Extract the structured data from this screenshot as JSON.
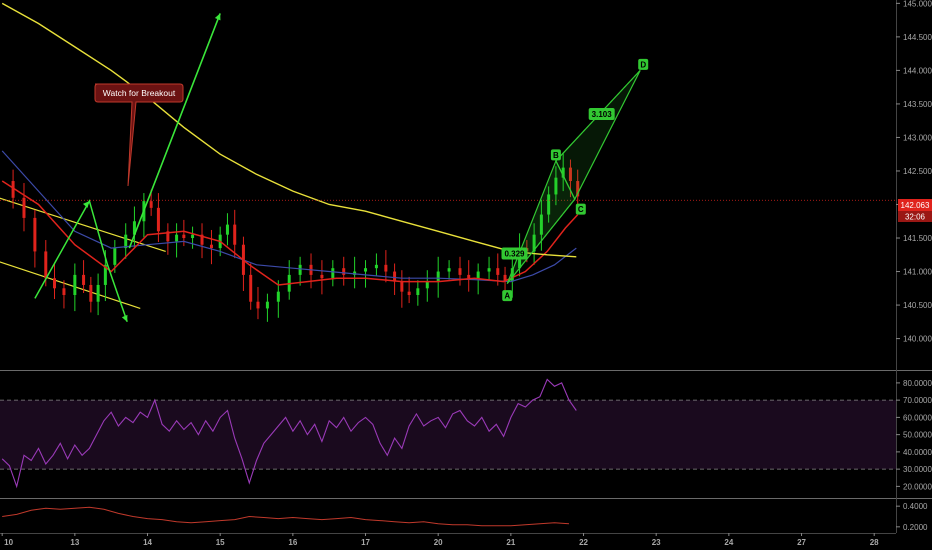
{
  "colors": {
    "background": "#000000",
    "bull_candle": "#22d42a",
    "bear_candle": "#e0231c",
    "sma_yellow": "#e8e03a",
    "ema_red": "#e0231c",
    "ema_blue": "#3c4aa8",
    "pattern_green": "#32c832",
    "arrow_green": "#3ae63a",
    "rsi_line": "#9a3ab8",
    "rsi_band": "#1a0a1e",
    "lower_line": "#c0392b",
    "price_line": "#e0231c",
    "callout_bg": "#6b1212"
  },
  "callout": {
    "text": "Watch for Breakout"
  },
  "price_tag": {
    "price": "142.063",
    "countdown": "32:06"
  },
  "chart_data": [
    {
      "type": "line",
      "panel": "price",
      "ytick_labels": [
        "145.000",
        "144.500",
        "144.000",
        "143.500",
        "143.000",
        "142.500",
        "142.000",
        "141.500",
        "141.000",
        "140.500",
        "140.000"
      ],
      "ylim": [
        139.8,
        145.05
      ],
      "xtick_labels": [
        "10",
        "13",
        "14",
        "15",
        "16",
        "17",
        "20",
        "21",
        "22",
        "23",
        "24",
        "27",
        "28"
      ],
      "x_positions": [
        0,
        1,
        2,
        3,
        4,
        5,
        6,
        7,
        8,
        9,
        10,
        11,
        12
      ],
      "xlim": [
        -0.03,
        12.3
      ],
      "close_series": [
        [
          0.0,
          142.35
        ],
        [
          0.15,
          142.1
        ],
        [
          0.3,
          141.8
        ],
        [
          0.45,
          141.3
        ],
        [
          0.6,
          140.9
        ],
        [
          0.72,
          140.75
        ],
        [
          0.85,
          140.65
        ],
        [
          1.0,
          140.95
        ],
        [
          1.12,
          140.8
        ],
        [
          1.22,
          140.55
        ],
        [
          1.32,
          140.8
        ],
        [
          1.42,
          141.1
        ],
        [
          1.55,
          141.35
        ],
        [
          1.7,
          141.55
        ],
        [
          1.82,
          141.75
        ],
        [
          1.95,
          142.05
        ],
        [
          2.05,
          141.95
        ],
        [
          2.15,
          141.6
        ],
        [
          2.28,
          141.45
        ],
        [
          2.4,
          141.55
        ],
        [
          2.5,
          141.5
        ],
        [
          2.62,
          141.55
        ],
        [
          2.75,
          141.4
        ],
        [
          2.88,
          141.35
        ],
        [
          3.0,
          141.55
        ],
        [
          3.1,
          141.7
        ],
        [
          3.2,
          141.4
        ],
        [
          3.32,
          140.95
        ],
        [
          3.42,
          140.55
        ],
        [
          3.52,
          140.45
        ],
        [
          3.65,
          140.55
        ],
        [
          3.8,
          140.7
        ],
        [
          3.95,
          140.95
        ],
        [
          4.1,
          141.1
        ],
        [
          4.25,
          140.95
        ],
        [
          4.4,
          140.9
        ],
        [
          4.55,
          141.05
        ],
        [
          4.7,
          140.95
        ],
        [
          4.85,
          141.0
        ],
        [
          5.0,
          141.05
        ],
        [
          5.15,
          141.1
        ],
        [
          5.28,
          141.0
        ],
        [
          5.4,
          140.85
        ],
        [
          5.5,
          140.7
        ],
        [
          5.6,
          140.65
        ],
        [
          5.72,
          140.75
        ],
        [
          5.85,
          140.85
        ],
        [
          6.0,
          141.0
        ],
        [
          6.15,
          141.05
        ],
        [
          6.3,
          140.95
        ],
        [
          6.42,
          140.9
        ],
        [
          6.55,
          141.0
        ],
        [
          6.7,
          141.05
        ],
        [
          6.82,
          140.95
        ],
        [
          6.92,
          140.85
        ],
        [
          7.02,
          141.05
        ],
        [
          7.12,
          141.35
        ],
        [
          7.22,
          141.3
        ],
        [
          7.32,
          141.55
        ],
        [
          7.42,
          141.85
        ],
        [
          7.52,
          142.15
        ],
        [
          7.62,
          142.4
        ],
        [
          7.72,
          142.55
        ],
        [
          7.82,
          142.35
        ],
        [
          7.92,
          142.12
        ]
      ],
      "sma200": [
        [
          0.0,
          145.0
        ],
        [
          0.5,
          144.7
        ],
        [
          1.0,
          144.35
        ],
        [
          1.5,
          144.0
        ],
        [
          2.0,
          143.6
        ],
        [
          2.5,
          143.15
        ],
        [
          3.0,
          142.75
        ],
        [
          3.5,
          142.45
        ],
        [
          4.0,
          142.2
        ],
        [
          4.5,
          142.0
        ],
        [
          5.0,
          141.9
        ],
        [
          5.5,
          141.75
        ],
        [
          6.0,
          141.6
        ],
        [
          6.5,
          141.45
        ],
        [
          7.0,
          141.3
        ],
        [
          7.5,
          141.25
        ],
        [
          7.9,
          141.22
        ]
      ],
      "ema_red": [
        [
          0.0,
          142.35
        ],
        [
          0.5,
          142.0
        ],
        [
          1.0,
          141.4
        ],
        [
          1.5,
          141.0
        ],
        [
          2.0,
          141.55
        ],
        [
          2.5,
          141.6
        ],
        [
          3.0,
          141.45
        ],
        [
          3.4,
          141.1
        ],
        [
          3.8,
          140.8
        ],
        [
          4.2,
          140.85
        ],
        [
          4.6,
          140.9
        ],
        [
          5.0,
          140.9
        ],
        [
          5.5,
          140.85
        ],
        [
          6.0,
          140.85
        ],
        [
          6.5,
          140.9
        ],
        [
          6.9,
          140.85
        ],
        [
          7.2,
          141.0
        ],
        [
          7.5,
          141.3
        ],
        [
          7.75,
          141.65
        ],
        [
          7.92,
          141.85
        ]
      ],
      "ema_blue": [
        [
          0.0,
          142.8
        ],
        [
          0.5,
          142.2
        ],
        [
          1.0,
          141.6
        ],
        [
          1.5,
          141.35
        ],
        [
          2.0,
          141.4
        ],
        [
          2.5,
          141.45
        ],
        [
          3.0,
          141.3
        ],
        [
          3.5,
          141.1
        ],
        [
          4.0,
          141.05
        ],
        [
          4.5,
          141.0
        ],
        [
          5.0,
          140.95
        ],
        [
          5.5,
          140.9
        ],
        [
          6.0,
          140.9
        ],
        [
          6.5,
          140.88
        ],
        [
          7.0,
          140.85
        ],
        [
          7.3,
          140.95
        ],
        [
          7.6,
          141.1
        ],
        [
          7.9,
          141.35
        ]
      ],
      "pattern_points": [
        {
          "label": "A",
          "x": 6.95,
          "y": 140.82
        },
        {
          "label": "B",
          "x": 7.62,
          "y": 142.65
        },
        {
          "label": "C",
          "x": 7.88,
          "y": 142.08
        },
        {
          "label": "D",
          "x": 8.78,
          "y": 144.0
        }
      ],
      "pattern_ratios": [
        {
          "label": "0.329"
        },
        {
          "label": "3.103"
        }
      ]
    },
    {
      "type": "line",
      "panel": "rsi",
      "ytick_labels": [
        "80.0000",
        "70.0000",
        "60.0000",
        "50.0000",
        "40.0000",
        "30.0000",
        "20.0000"
      ],
      "ylim": [
        15,
        84
      ],
      "band": [
        30,
        70
      ],
      "values": [
        [
          0.0,
          36
        ],
        [
          0.1,
          32
        ],
        [
          0.2,
          20
        ],
        [
          0.3,
          38
        ],
        [
          0.4,
          35
        ],
        [
          0.5,
          42
        ],
        [
          0.6,
          33
        ],
        [
          0.7,
          38
        ],
        [
          0.8,
          45
        ],
        [
          0.9,
          36
        ],
        [
          1.0,
          44
        ],
        [
          1.1,
          38
        ],
        [
          1.2,
          42
        ],
        [
          1.3,
          50
        ],
        [
          1.4,
          58
        ],
        [
          1.5,
          63
        ],
        [
          1.6,
          55
        ],
        [
          1.7,
          60
        ],
        [
          1.8,
          57
        ],
        [
          1.9,
          63
        ],
        [
          2.0,
          60
        ],
        [
          2.1,
          70
        ],
        [
          2.2,
          56
        ],
        [
          2.3,
          52
        ],
        [
          2.4,
          58
        ],
        [
          2.5,
          53
        ],
        [
          2.6,
          57
        ],
        [
          2.7,
          50
        ],
        [
          2.8,
          58
        ],
        [
          2.9,
          52
        ],
        [
          3.0,
          60
        ],
        [
          3.1,
          64
        ],
        [
          3.2,
          48
        ],
        [
          3.3,
          36
        ],
        [
          3.4,
          22
        ],
        [
          3.5,
          35
        ],
        [
          3.6,
          45
        ],
        [
          3.7,
          50
        ],
        [
          3.8,
          55
        ],
        [
          3.9,
          60
        ],
        [
          4.0,
          52
        ],
        [
          4.1,
          58
        ],
        [
          4.2,
          50
        ],
        [
          4.3,
          56
        ],
        [
          4.4,
          46
        ],
        [
          4.5,
          58
        ],
        [
          4.6,
          54
        ],
        [
          4.7,
          60
        ],
        [
          4.8,
          52
        ],
        [
          4.9,
          57
        ],
        [
          5.0,
          60
        ],
        [
          5.1,
          56
        ],
        [
          5.2,
          45
        ],
        [
          5.3,
          38
        ],
        [
          5.4,
          48
        ],
        [
          5.5,
          42
        ],
        [
          5.6,
          55
        ],
        [
          5.7,
          62
        ],
        [
          5.8,
          55
        ],
        [
          5.9,
          58
        ],
        [
          6.0,
          60
        ],
        [
          6.1,
          54
        ],
        [
          6.2,
          62
        ],
        [
          6.3,
          64
        ],
        [
          6.4,
          58
        ],
        [
          6.5,
          55
        ],
        [
          6.6,
          60
        ],
        [
          6.7,
          52
        ],
        [
          6.8,
          56
        ],
        [
          6.9,
          49
        ],
        [
          7.0,
          60
        ],
        [
          7.1,
          68
        ],
        [
          7.2,
          66
        ],
        [
          7.3,
          70
        ],
        [
          7.4,
          72
        ],
        [
          7.5,
          82
        ],
        [
          7.6,
          78
        ],
        [
          7.7,
          80
        ],
        [
          7.8,
          70
        ],
        [
          7.9,
          64
        ]
      ]
    },
    {
      "type": "line",
      "panel": "lower",
      "ytick_labels": [
        "0.4000",
        "0.2000"
      ],
      "ylim": [
        0.15,
        0.45
      ],
      "values": [
        [
          0.0,
          0.3
        ],
        [
          0.2,
          0.32
        ],
        [
          0.4,
          0.36
        ],
        [
          0.6,
          0.38
        ],
        [
          0.8,
          0.37
        ],
        [
          1.0,
          0.38
        ],
        [
          1.2,
          0.39
        ],
        [
          1.4,
          0.37
        ],
        [
          1.6,
          0.33
        ],
        [
          1.8,
          0.3
        ],
        [
          2.0,
          0.28
        ],
        [
          2.2,
          0.27
        ],
        [
          2.4,
          0.25
        ],
        [
          2.6,
          0.24
        ],
        [
          2.8,
          0.25
        ],
        [
          3.0,
          0.26
        ],
        [
          3.2,
          0.27
        ],
        [
          3.4,
          0.3
        ],
        [
          3.6,
          0.29
        ],
        [
          3.8,
          0.28
        ],
        [
          4.0,
          0.29
        ],
        [
          4.2,
          0.28
        ],
        [
          4.4,
          0.27
        ],
        [
          4.6,
          0.28
        ],
        [
          4.8,
          0.29
        ],
        [
          5.0,
          0.27
        ],
        [
          5.2,
          0.26
        ],
        [
          5.4,
          0.25
        ],
        [
          5.6,
          0.24
        ],
        [
          5.8,
          0.25
        ],
        [
          6.0,
          0.23
        ],
        [
          6.2,
          0.22
        ],
        [
          6.4,
          0.22
        ],
        [
          6.6,
          0.21
        ],
        [
          6.8,
          0.21
        ],
        [
          7.0,
          0.21
        ],
        [
          7.2,
          0.22
        ],
        [
          7.4,
          0.23
        ],
        [
          7.6,
          0.24
        ],
        [
          7.8,
          0.23
        ]
      ]
    }
  ]
}
